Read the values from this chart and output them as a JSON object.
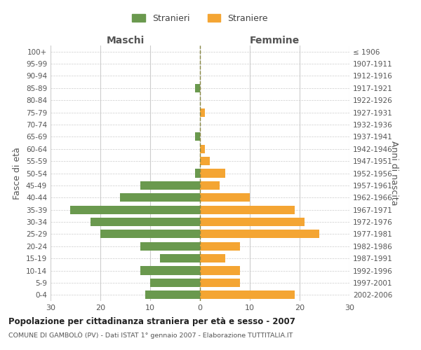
{
  "age_groups": [
    "100+",
    "95-99",
    "90-94",
    "85-89",
    "80-84",
    "75-79",
    "70-74",
    "65-69",
    "60-64",
    "55-59",
    "50-54",
    "45-49",
    "40-44",
    "35-39",
    "30-34",
    "25-29",
    "20-24",
    "15-19",
    "10-14",
    "5-9",
    "0-4"
  ],
  "birth_years": [
    "≤ 1906",
    "1907-1911",
    "1912-1916",
    "1917-1921",
    "1922-1926",
    "1927-1931",
    "1932-1936",
    "1937-1941",
    "1942-1946",
    "1947-1951",
    "1952-1956",
    "1957-1961",
    "1962-1966",
    "1967-1971",
    "1972-1976",
    "1977-1981",
    "1982-1986",
    "1987-1991",
    "1992-1996",
    "1997-2001",
    "2002-2006"
  ],
  "males": [
    0,
    0,
    0,
    1,
    0,
    0,
    0,
    1,
    0,
    0,
    1,
    12,
    16,
    26,
    22,
    20,
    12,
    8,
    12,
    10,
    11
  ],
  "females": [
    0,
    0,
    0,
    0,
    0,
    1,
    0,
    0,
    1,
    2,
    5,
    4,
    10,
    19,
    21,
    24,
    8,
    5,
    8,
    8,
    19
  ],
  "male_color": "#6a994e",
  "female_color": "#f4a533",
  "background_color": "#ffffff",
  "grid_color": "#cccccc",
  "title": "Popolazione per cittadinanza straniera per età e sesso - 2007",
  "subtitle": "COMUNE DI GAMBOLÒ (PV) - Dati ISTAT 1° gennaio 2007 - Elaborazione TUTTITALIA.IT",
  "xlabel_left": "Maschi",
  "xlabel_right": "Femmine",
  "ylabel_left": "Fasce di età",
  "ylabel_right": "Anni di nascita",
  "legend_males": "Stranieri",
  "legend_females": "Straniere",
  "xlim": 30,
  "bar_height": 0.7,
  "dashed_line_color": "#888844"
}
